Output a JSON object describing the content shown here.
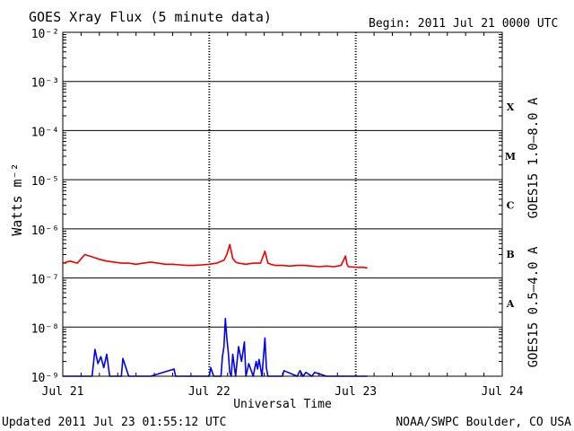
{
  "header": {
    "title": "GOES Xray Flux (5 minute data)",
    "begin": "Begin:  2011 Jul 21 0000 UTC"
  },
  "footer": {
    "updated": "Updated 2011 Jul 23 01:55:12 UTC",
    "credit": "NOAA/SWPC Boulder, CO USA"
  },
  "colors": {
    "long": "#ee0000",
    "short": "#0000ee",
    "grid": "#000000"
  },
  "chart_data": {
    "type": "line",
    "title": "GOES Xray Flux (5 minute data)",
    "xlabel": "Universal Time",
    "ylabel": "Watts m⁻²",
    "yscale": "log",
    "ylim": [
      1e-09,
      0.01
    ],
    "xlim": [
      0,
      3
    ],
    "x_ticks": [
      {
        "value": 0,
        "label": "Jul 21"
      },
      {
        "value": 1,
        "label": "Jul 22"
      },
      {
        "value": 2,
        "label": "Jul 23"
      },
      {
        "value": 3,
        "label": "Jul 24"
      }
    ],
    "y_ticks": [
      {
        "exp": -2,
        "label": "10⁻²"
      },
      {
        "exp": -3,
        "label": "10⁻³"
      },
      {
        "exp": -4,
        "label": "10⁻⁴"
      },
      {
        "exp": -5,
        "label": "10⁻⁵"
      },
      {
        "exp": -6,
        "label": "10⁻⁶"
      },
      {
        "exp": -7,
        "label": "10⁻⁷"
      },
      {
        "exp": -8,
        "label": "10⁻⁸"
      },
      {
        "exp": -9,
        "label": "10⁻⁹"
      }
    ],
    "flare_classes": [
      {
        "label": "X",
        "exp": -3.5
      },
      {
        "label": "M",
        "exp": -4.5
      },
      {
        "label": "C",
        "exp": -5.5
      },
      {
        "label": "B",
        "exp": -6.5
      },
      {
        "label": "A",
        "exp": -7.5
      }
    ],
    "series": [
      {
        "name": "GOES15 1.0–8.0 A",
        "color": "#ee0000",
        "x": [
          0.0,
          0.05,
          0.1,
          0.15,
          0.2,
          0.25,
          0.3,
          0.35,
          0.4,
          0.45,
          0.5,
          0.55,
          0.6,
          0.65,
          0.7,
          0.75,
          0.8,
          0.85,
          0.9,
          0.95,
          1.0,
          1.05,
          1.1,
          1.12,
          1.14,
          1.16,
          1.18,
          1.2,
          1.25,
          1.3,
          1.35,
          1.38,
          1.4,
          1.42,
          1.45,
          1.5,
          1.55,
          1.6,
          1.65,
          1.7,
          1.75,
          1.8,
          1.85,
          1.9,
          1.93,
          1.94,
          1.95,
          2.0,
          2.05,
          2.08
        ],
        "y": [
          2e-07,
          2.2e-07,
          2e-07,
          3e-07,
          2.7e-07,
          2.4e-07,
          2.2e-07,
          2.1e-07,
          2e-07,
          2e-07,
          1.9e-07,
          2e-07,
          2.1e-07,
          2e-07,
          1.9e-07,
          1.9e-07,
          1.85e-07,
          1.8e-07,
          1.8e-07,
          1.85e-07,
          1.9e-07,
          2e-07,
          2.3e-07,
          3e-07,
          4.8e-07,
          2.5e-07,
          2.1e-07,
          2e-07,
          1.9e-07,
          2e-07,
          2e-07,
          3.5e-07,
          2e-07,
          1.9e-07,
          1.8e-07,
          1.8e-07,
          1.75e-07,
          1.8e-07,
          1.8e-07,
          1.75e-07,
          1.7e-07,
          1.75e-07,
          1.7e-07,
          1.8e-07,
          2.8e-07,
          1.9e-07,
          1.7e-07,
          1.65e-07,
          1.65e-07,
          1.6e-07
        ]
      },
      {
        "name": "GOES15 0.5–4.0 A",
        "color": "#0000ee",
        "x": [
          0.0,
          0.2,
          0.22,
          0.24,
          0.26,
          0.28,
          0.3,
          0.32,
          0.35,
          0.4,
          0.41,
          0.45,
          0.6,
          0.76,
          0.77,
          0.8,
          1.0,
          1.01,
          1.03,
          1.06,
          1.08,
          1.09,
          1.1,
          1.11,
          1.12,
          1.13,
          1.14,
          1.15,
          1.16,
          1.18,
          1.2,
          1.22,
          1.24,
          1.25,
          1.27,
          1.3,
          1.32,
          1.33,
          1.34,
          1.36,
          1.38,
          1.39,
          1.4,
          1.42,
          1.45,
          1.5,
          1.51,
          1.6,
          1.62,
          1.64,
          1.66,
          1.7,
          1.72,
          1.8,
          1.9,
          2.0,
          2.05,
          2.08
        ],
        "y": [
          1e-09,
          1e-09,
          3.5e-09,
          1.8e-09,
          2.5e-09,
          1.5e-09,
          2.8e-09,
          1e-09,
          1e-09,
          1e-09,
          2.3e-09,
          1e-09,
          1e-09,
          1.4e-09,
          1e-09,
          1e-09,
          1e-09,
          1.5e-09,
          1e-09,
          1e-09,
          1e-09,
          2.5e-09,
          4e-09,
          1.5e-08,
          6e-09,
          3e-09,
          1.2e-09,
          1e-09,
          2.8e-09,
          1e-09,
          4e-09,
          2e-09,
          5e-09,
          1e-09,
          1.8e-09,
          1e-09,
          2e-09,
          1.4e-09,
          2.2e-09,
          1e-09,
          6e-09,
          1.5e-09,
          1e-09,
          1e-09,
          1e-09,
          1e-09,
          1.3e-09,
          1e-09,
          1.3e-09,
          1e-09,
          1.2e-09,
          1e-09,
          1.2e-09,
          1e-09,
          1e-09,
          1e-09,
          1e-09,
          1e-09
        ]
      }
    ],
    "grid": true
  }
}
